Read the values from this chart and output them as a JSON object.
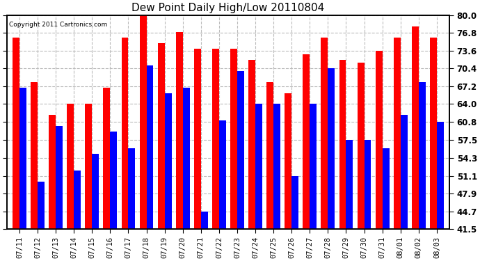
{
  "title": "Dew Point Daily High/Low 20110804",
  "copyright": "Copyright 2011 Cartronics.com",
  "dates": [
    "07/11",
    "07/12",
    "07/13",
    "07/14",
    "07/15",
    "07/16",
    "07/17",
    "07/18",
    "07/19",
    "07/20",
    "07/21",
    "07/22",
    "07/23",
    "07/24",
    "07/25",
    "07/26",
    "07/27",
    "07/28",
    "07/29",
    "07/30",
    "07/31",
    "08/01",
    "08/02",
    "08/03"
  ],
  "highs": [
    76.0,
    68.0,
    62.0,
    64.0,
    64.0,
    67.0,
    76.0,
    80.0,
    75.0,
    77.0,
    74.0,
    74.0,
    74.0,
    72.0,
    68.0,
    66.0,
    73.0,
    76.0,
    72.0,
    71.5,
    73.6,
    76.0,
    78.0,
    76.0
  ],
  "lows": [
    67.0,
    50.0,
    60.0,
    52.0,
    55.0,
    59.0,
    56.0,
    71.0,
    66.0,
    67.0,
    44.7,
    61.0,
    70.0,
    64.0,
    64.0,
    51.0,
    64.0,
    70.4,
    57.5,
    57.5,
    56.0,
    62.0,
    68.0,
    60.8
  ],
  "high_color": "#ff0000",
  "low_color": "#0000ff",
  "bg_color": "#ffffff",
  "grid_color": "#bbbbbb",
  "ylim_min": 41.5,
  "ylim_max": 80.0,
  "yticks": [
    41.5,
    44.7,
    47.9,
    51.1,
    54.3,
    57.5,
    60.8,
    64.0,
    67.2,
    70.4,
    73.6,
    76.8,
    80.0
  ],
  "bar_width": 0.38,
  "figsize": [
    6.9,
    3.75
  ],
  "dpi": 100
}
